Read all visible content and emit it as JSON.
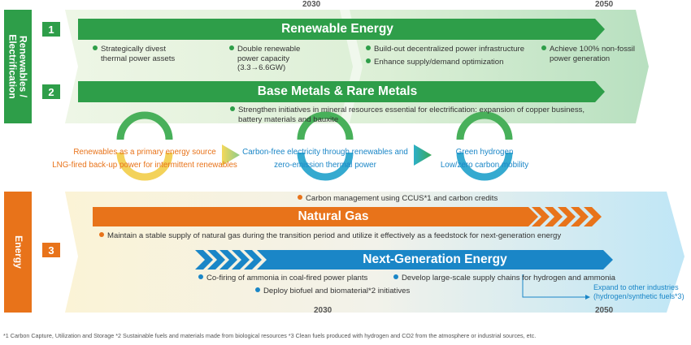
{
  "sides": {
    "top": "Renewables / Electrification",
    "bottom": "Energy"
  },
  "years": {
    "y2030": "2030",
    "y2050": "2050"
  },
  "items": {
    "n1": "1",
    "n2": "2",
    "n3": "3",
    "renewable_title": "Renewable Energy",
    "metals_title": "Base Metals & Rare Metals",
    "gas_title": "Natural Gas",
    "ng_title": "Next-Generation Energy"
  },
  "renewable": {
    "b1a": "Strategically divest",
    "b1b": "thermal power assets",
    "b2a": "Double renewable",
    "b2b": "power capacity",
    "b2c": "(3.3→6.6GW)",
    "b3": "Build-out decentralized power infrastructure",
    "b4": "Enhance supply/demand optimization",
    "b5a": "Achieve 100% non-fossil",
    "b5b": "power generation"
  },
  "metals": {
    "b1a": "Strengthen initiatives in mineral resources essential for electrification: expansion of copper business,",
    "b1b": "battery materials and bauxite"
  },
  "middle": {
    "s1a": "Renewables as a primary energy source",
    "s1b": "LNG-fired back-up power for intermittent renewables",
    "s2a": "Carbon-free electricity through renewables and",
    "s2b": "zero-emission thermal power",
    "s3a": "Green hydrogen",
    "s3b": "Low/zero carbon mobility"
  },
  "energy": {
    "ccus": "Carbon management using CCUS*1 and carbon credits",
    "gas_note": "Maintain a stable supply of natural gas during the transition period and utilize it effectively as a feedstock for next-generation energy",
    "ammonia": "Co-firing of ammonia in coal-fired power plants",
    "biofuel": "Deploy biofuel and biomaterial*2 initiatives",
    "supply": "Develop large-scale supply chains for hydrogen and ammonia",
    "expand_a": "Expand to other industries",
    "expand_b": "(hydrogen/synthetic fuels*3)"
  },
  "footnote": "*1 Carbon Capture, Utilization and Storage   *2 Sustainable fuels and materials made from biological resources   *3 Clean fuels produced with hydrogen and CO2 from the atmosphere or industrial sources, etc.",
  "colors": {
    "green": "#2e9e49",
    "orange": "#e8731a",
    "blue": "#1a86c7"
  }
}
